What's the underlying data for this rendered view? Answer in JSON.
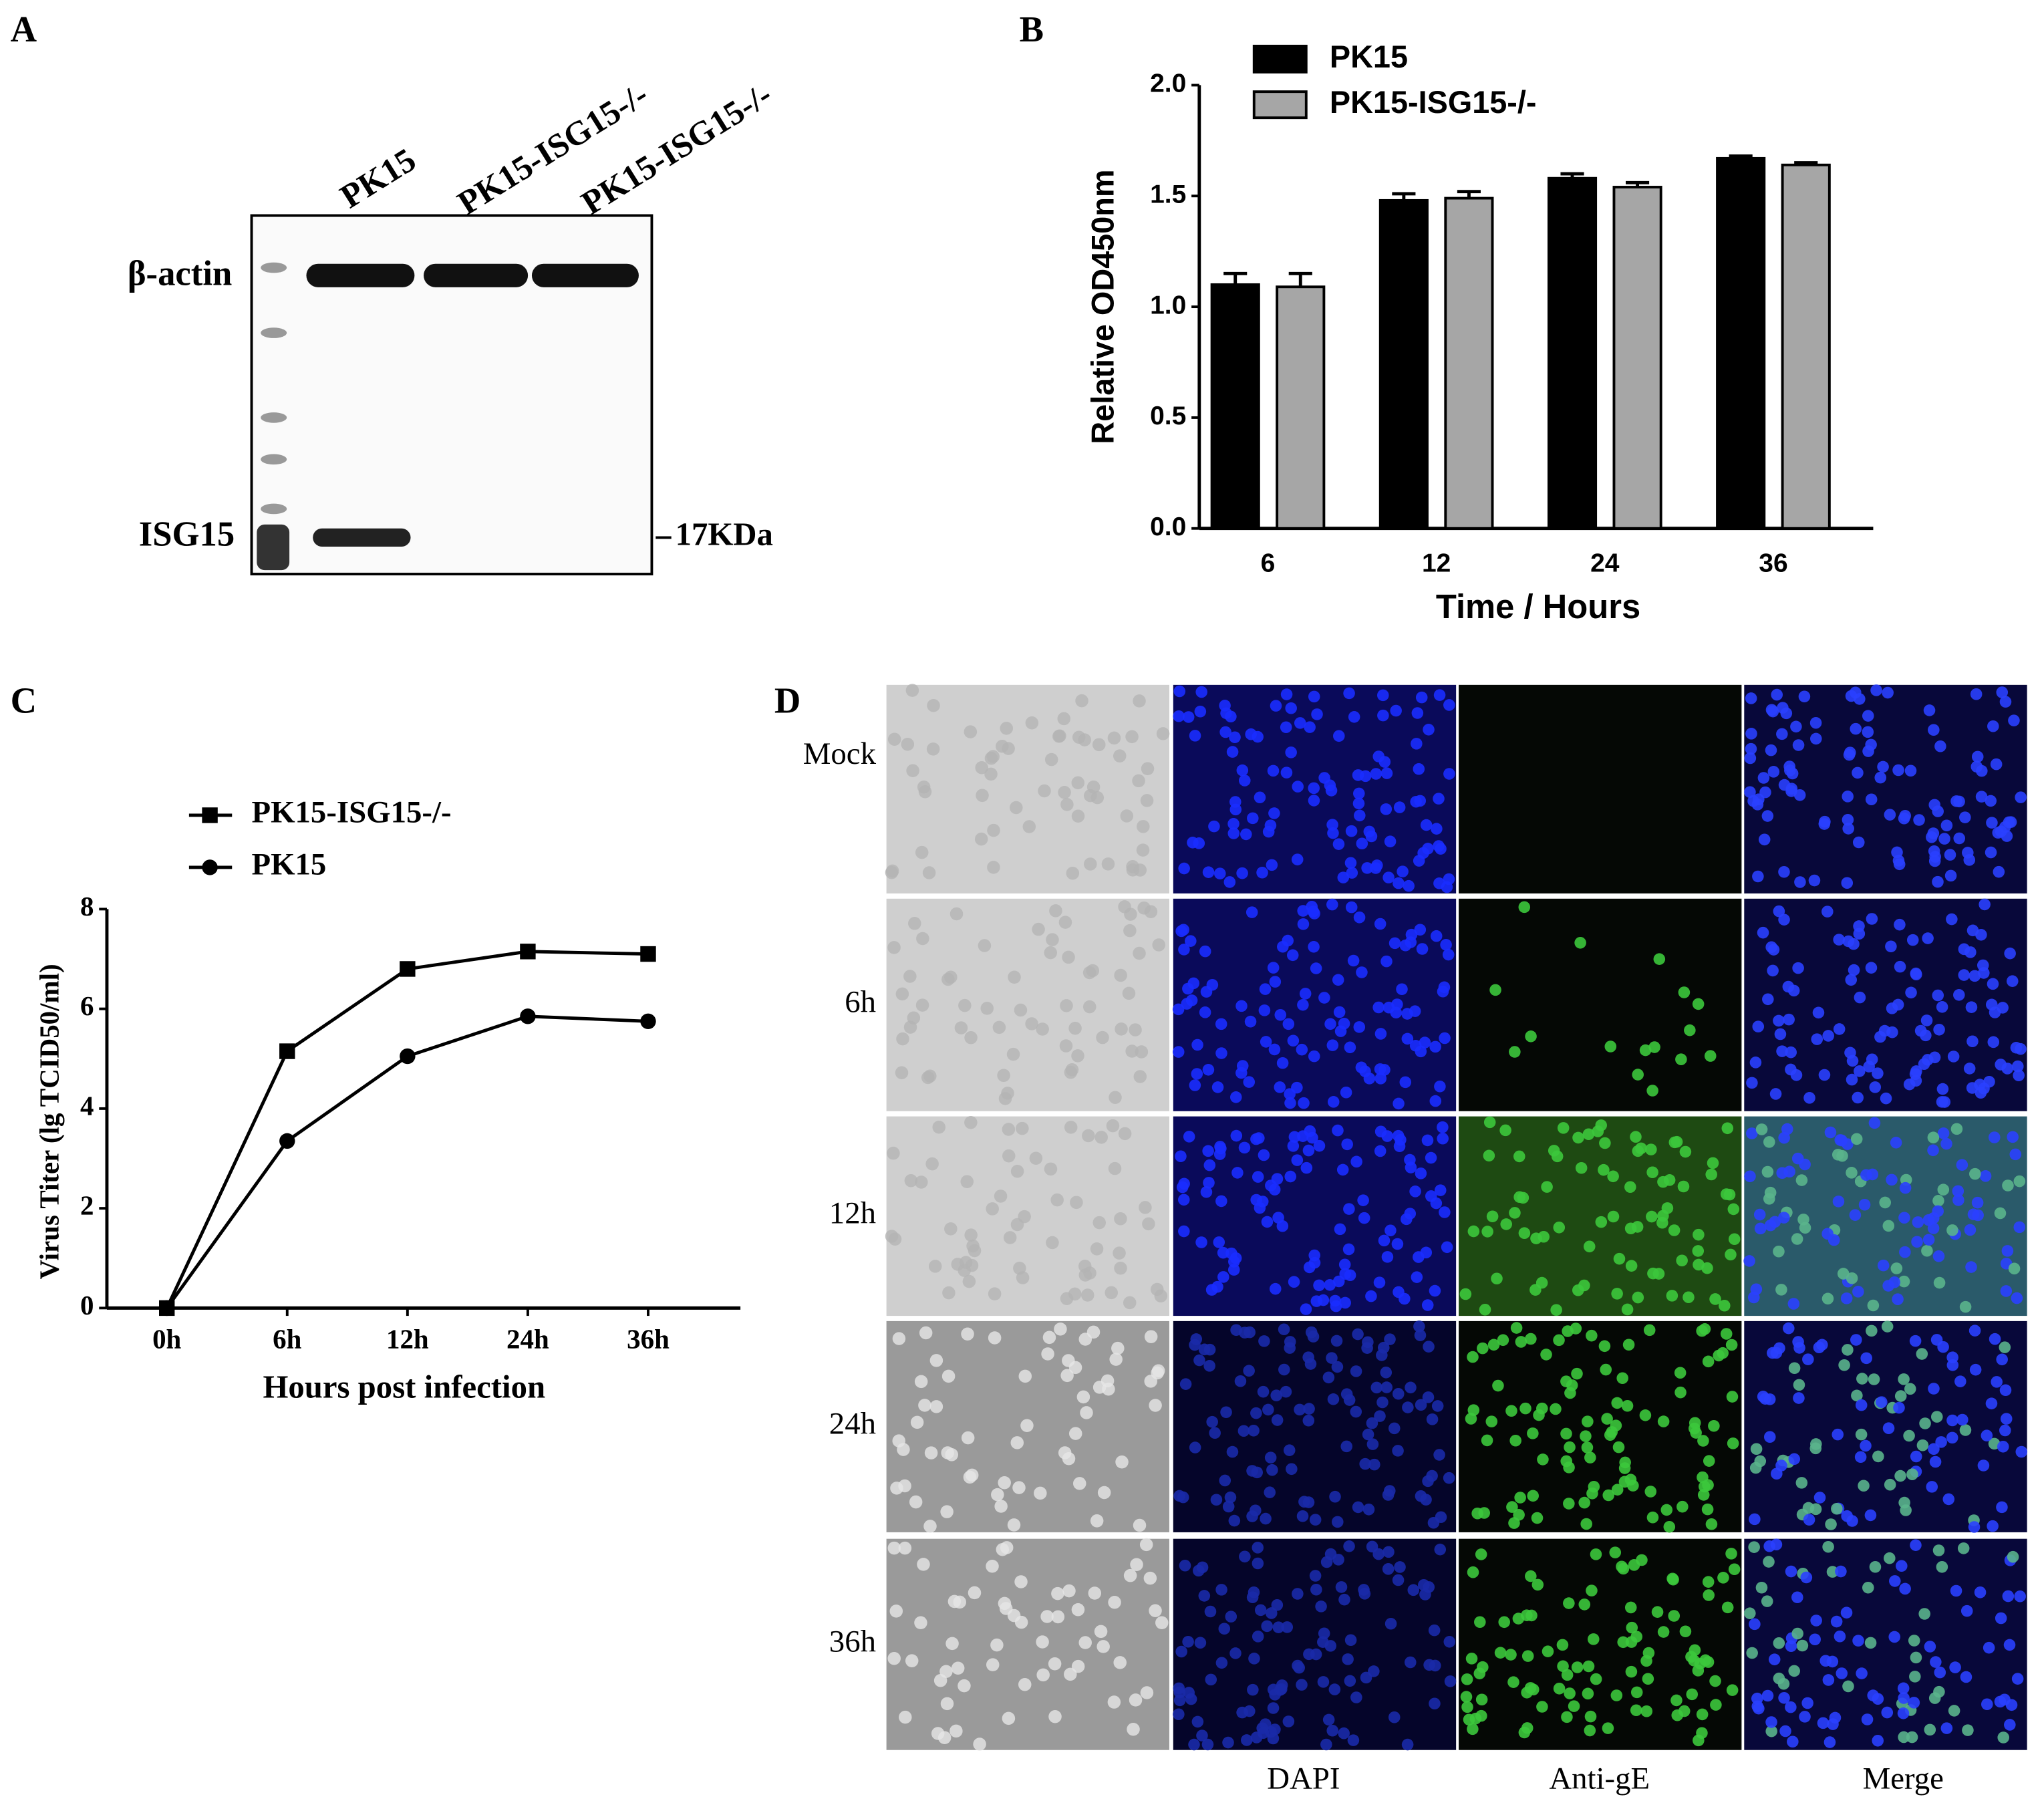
{
  "panel_labels": [
    "A",
    "B",
    "C",
    "D"
  ],
  "blot": {
    "lanes": [
      "PK15",
      "PK15-ISG15-/-",
      "PK15-ISG15-/-"
    ],
    "bands": [
      "β-actin",
      "ISG15"
    ],
    "size_marker": "17KDa"
  },
  "chart_data": [
    {
      "type": "bar",
      "ylabel": "Relative OD450nm",
      "xlabel": "Time / Hours",
      "categories": [
        "6",
        "12",
        "24",
        "36"
      ],
      "series": [
        {
          "name": "PK15",
          "color": "#000000",
          "values": [
            1.1,
            1.48,
            1.58,
            1.67
          ],
          "errors": [
            0.05,
            0.03,
            0.02,
            0.01
          ]
        },
        {
          "name": "PK15-ISG15-/-",
          "color": "#a6a6a6",
          "values": [
            1.09,
            1.49,
            1.54,
            1.64
          ],
          "errors": [
            0.06,
            0.03,
            0.02,
            0.01
          ]
        }
      ],
      "ylim": [
        0,
        2
      ],
      "yticks": [
        {
          "value": 0,
          "label": "0.0"
        },
        {
          "value": 0.5,
          "label": "0.5"
        },
        {
          "value": 1,
          "label": "1.0"
        },
        {
          "value": 1.5,
          "label": "1.5"
        },
        {
          "value": 2,
          "label": "2.0"
        }
      ],
      "legend": "top-left"
    },
    {
      "type": "line",
      "ylabel": "Virus Titer (lg TCID50/ml)",
      "xlabel": "Hours post infection",
      "categories": [
        "0h",
        "6h",
        "12h",
        "24h",
        "36h"
      ],
      "series": [
        {
          "name": "PK15-ISG15-/-",
          "color": "#000000",
          "marker": "square",
          "values": [
            0,
            5.15,
            6.8,
            7.15,
            7.1
          ]
        },
        {
          "name": "PK15",
          "color": "#000000",
          "marker": "circle",
          "values": [
            0,
            3.35,
            5.05,
            5.85,
            5.75
          ]
        }
      ],
      "ylim": [
        0,
        8
      ],
      "yticks": [
        0,
        2,
        4,
        6,
        8
      ],
      "legend": "top-left"
    }
  ],
  "microscopy": {
    "rows": [
      "Mock",
      "6h",
      "12h",
      "24h",
      "36h"
    ],
    "columns": [
      "DAPI",
      "Anti-gE",
      "Merge"
    ]
  }
}
